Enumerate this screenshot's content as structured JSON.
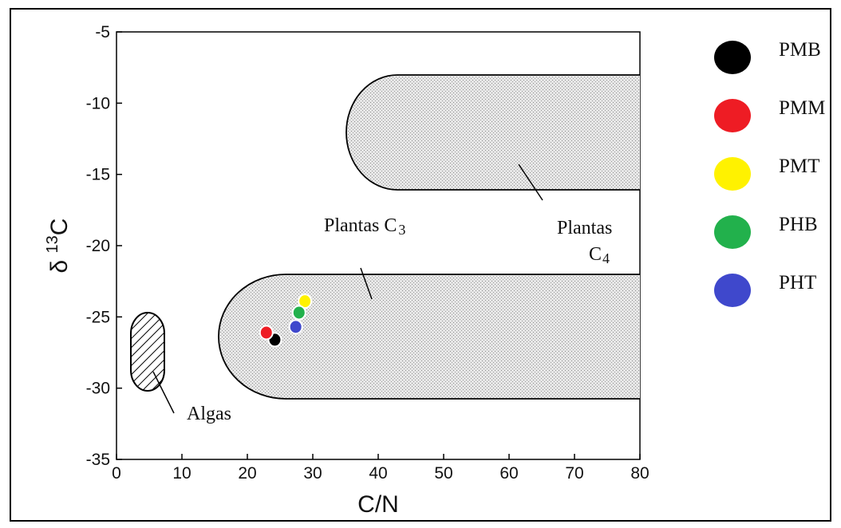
{
  "chart_data": {
    "type": "scatter",
    "title": "",
    "xlabel": "C/N",
    "ylabel_prefix": "δ ",
    "ylabel_sup": "13",
    "ylabel_suffix": "C",
    "xlim": [
      0,
      80
    ],
    "ylim": [
      -35,
      -5
    ],
    "xticks": [
      0,
      10,
      20,
      30,
      40,
      50,
      60,
      70,
      80
    ],
    "yticks": [
      -5,
      -10,
      -15,
      -20,
      -25,
      -30,
      -35
    ],
    "regions": [
      {
        "name": "algas",
        "label": "Algas",
        "pattern": "hatched"
      },
      {
        "name": "plantas-c3",
        "label_main": "Plantas C",
        "label_sub": "3",
        "pattern": "stippled"
      },
      {
        "name": "plantas-c4",
        "label_line1": "Plantas",
        "label_line2": "C",
        "label_sub": "4",
        "pattern": "stippled"
      }
    ],
    "series": [
      {
        "name": "PMB",
        "color": "#000000",
        "x": 24.2,
        "y": -26.6
      },
      {
        "name": "PMM",
        "color": "#ee1c24",
        "x": 22.9,
        "y": -26.1
      },
      {
        "name": "PMT",
        "color": "#fff200",
        "x": 28.8,
        "y": -23.9
      },
      {
        "name": "PHB",
        "color": "#22b14c",
        "x": 27.9,
        "y": -24.7
      },
      {
        "name": "PHT",
        "color": "#3f48cc",
        "x": 27.4,
        "y": -25.7
      }
    ]
  }
}
